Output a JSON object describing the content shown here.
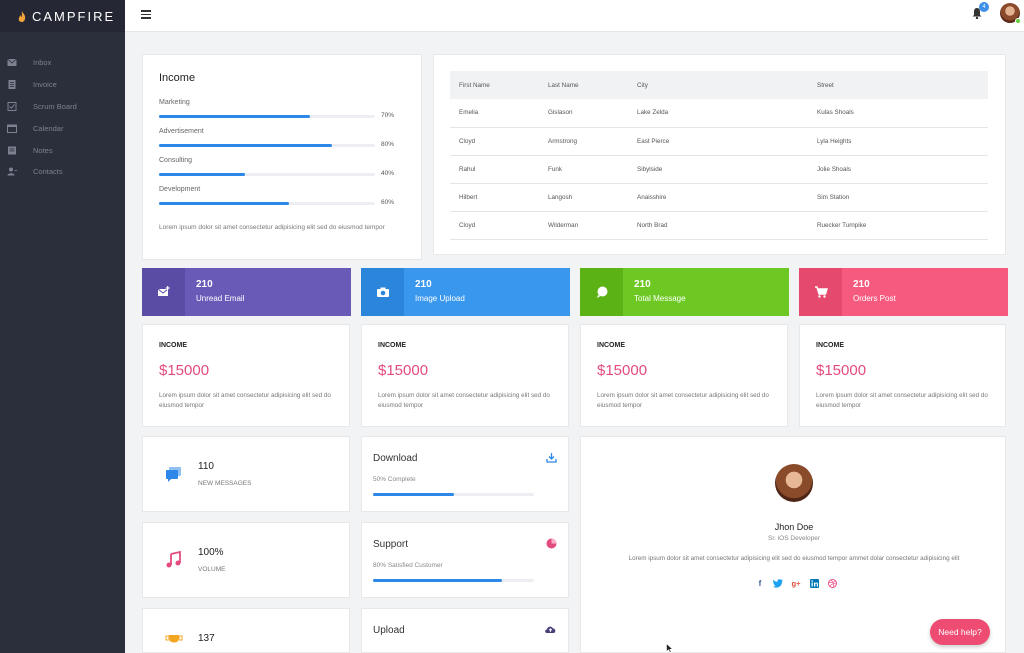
{
  "brand": {
    "name": "CAMPFIRE"
  },
  "sidebar": {
    "items": [
      {
        "label": "Inbox",
        "icon": "mail-icon"
      },
      {
        "label": "Invoice",
        "icon": "invoice-icon"
      },
      {
        "label": "Scrum Board",
        "icon": "checkbox-icon"
      },
      {
        "label": "Calendar",
        "icon": "calendar-icon"
      },
      {
        "label": "Notes",
        "icon": "notes-icon"
      },
      {
        "label": "Contacts",
        "icon": "contacts-icon"
      }
    ]
  },
  "header": {
    "notification_count": "4"
  },
  "income": {
    "title": "Income",
    "items": [
      {
        "label": "Marketing",
        "value": "70%",
        "fraction": 0.7
      },
      {
        "label": "Advertisement",
        "value": "80%",
        "fraction": 0.8
      },
      {
        "label": "Consulting",
        "value": "40%",
        "fraction": 0.4
      },
      {
        "label": "Development",
        "value": "60%",
        "fraction": 0.6
      }
    ],
    "text": "Lorem ipsum dolor sit amet consectetur adipisicing elit sed do eiusmod tempor"
  },
  "table": {
    "headers": [
      "First Name",
      "Last Name",
      "City",
      "Street"
    ],
    "rows": [
      [
        "Emelia",
        "Gislason",
        "Lake Zelda",
        "Kulas Shoals"
      ],
      [
        "Cloyd",
        "Armstrong",
        "East Pierce",
        "Lyla Heights"
      ],
      [
        "Rahul",
        "Funk",
        "Sibylside",
        "Jolie Shoals"
      ],
      [
        "Hilbert",
        "Langosh",
        "Anaisshire",
        "Sim Station"
      ],
      [
        "Cloyd",
        "Wilderman",
        "North Brad",
        "Ruecker Turnpike"
      ]
    ]
  },
  "tiles": [
    {
      "value": "210",
      "label": "Unread Email",
      "icon": "mail-plus-icon",
      "color": "#6a5ab8",
      "icon_bg": "#5a4ba4"
    },
    {
      "value": "210",
      "label": "Image Upload",
      "icon": "camera-icon",
      "color": "#3a97ee",
      "icon_bg": "#2b85da"
    },
    {
      "value": "210",
      "label": "Total Message",
      "icon": "chat-icon",
      "color": "#6dc823",
      "icon_bg": "#5ab214"
    },
    {
      "value": "210",
      "label": "Orders Post",
      "icon": "cart-icon",
      "color": "#f65b7f",
      "icon_bg": "#e54a6e"
    }
  ],
  "income_stats": [
    {
      "title": "INCOME",
      "amount": "$15000",
      "text": "Lorem ipsum dolor sit amet consectetur adipisicing elit sed do eiusmod tempor"
    },
    {
      "title": "INCOME",
      "amount": "$15000",
      "text": "Lorem ipsum dolor sit amet consectetur adipisicing elit sed do eiusmod tempor"
    },
    {
      "title": "INCOME",
      "amount": "$15000",
      "text": "Lorem ipsum dolor sit amet consectetur adipisicing elit sed do eiusmod tempor"
    },
    {
      "title": "INCOME",
      "amount": "$15000",
      "text": "Lorem ipsum dolor sit amet consectetur adipisicing elit sed do eiusmod tempor"
    }
  ],
  "small_stats": [
    {
      "value": "110",
      "label": "NEW MESSAGES",
      "icon": "messages-icon"
    },
    {
      "value": "100%",
      "label": "VOLUME",
      "icon": "music-icon"
    },
    {
      "value": "137",
      "label": "",
      "icon": "trophy-icon"
    }
  ],
  "progress_cards": [
    {
      "title": "Download",
      "subtitle": "50% Complete",
      "fraction": 0.5,
      "icon": "download-icon"
    },
    {
      "title": "Support",
      "subtitle": "80% Satisfied Customer",
      "fraction": 0.8,
      "icon": "pie-icon"
    },
    {
      "title": "Upload",
      "subtitle": "",
      "fraction": 0,
      "icon": "cloud-upload-icon"
    }
  ],
  "profile": {
    "name": "Jhon Doe",
    "role": "Sr. iOS Developer",
    "bio": "Lorem ipsum dolor sit amet consectetur adipisicing elit sed do eiusmod tempor ammet dolar consectetur adipisicing elit",
    "social": [
      "facebook-icon",
      "twitter-icon",
      "google-plus-icon",
      "linkedin-icon",
      "dribbble-icon"
    ]
  },
  "help": {
    "label": "Need help?"
  }
}
